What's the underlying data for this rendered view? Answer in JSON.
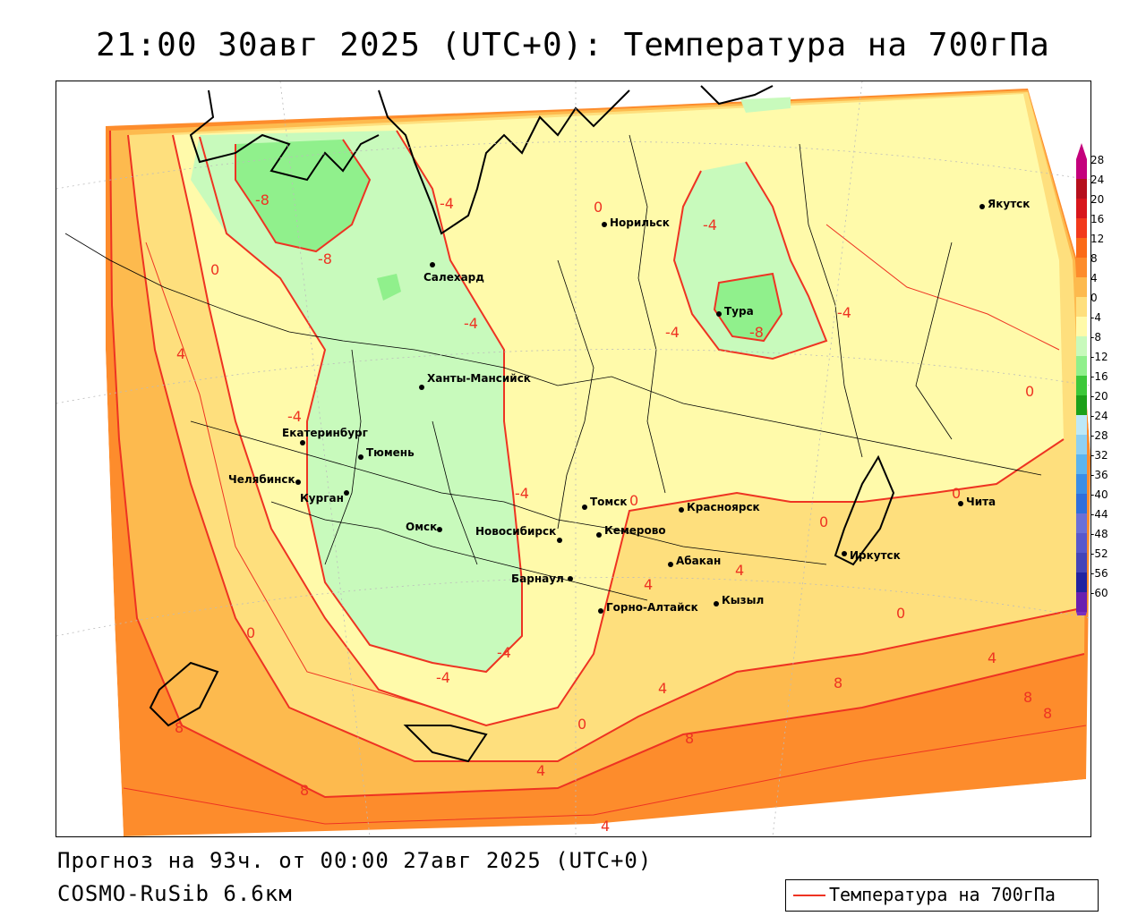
{
  "header": {
    "title": "21:00 30авг 2025 (UTC+0): Температура на 700гПа"
  },
  "footer": {
    "forecast": "Прогноз на 93ч. от 00:00 27авг 2025 (UTC+0)",
    "model": "COSMO-RuSib 6.6км"
  },
  "line_legend": {
    "label": "Температура на 700гПа",
    "color": "#ee3322"
  },
  "color_scale": {
    "levels": [
      {
        "label": "28",
        "color": "#c4007c"
      },
      {
        "label": "24",
        "color": "#b60f1d"
      },
      {
        "label": "20",
        "color": "#d8161c"
      },
      {
        "label": "16",
        "color": "#f2391c"
      },
      {
        "label": "12",
        "color": "#fb6a18"
      },
      {
        "label": "8",
        "color": "#fd8c2c"
      },
      {
        "label": "4",
        "color": "#fdba4e"
      },
      {
        "label": "0",
        "color": "#fedf7d"
      },
      {
        "label": "-4",
        "color": "#fffaaa"
      },
      {
        "label": "-8",
        "color": "#c8fabc"
      },
      {
        "label": "-12",
        "color": "#90f08c"
      },
      {
        "label": "-16",
        "color": "#3cc83a"
      },
      {
        "label": "-20",
        "color": "#1ca01a"
      },
      {
        "label": "-24",
        "color": "#bde8f8"
      },
      {
        "label": "-28",
        "color": "#8ed0f4"
      },
      {
        "label": "-32",
        "color": "#5cb4ee"
      },
      {
        "label": "-36",
        "color": "#3a8ee6"
      },
      {
        "label": "-40",
        "color": "#2f6fdc"
      },
      {
        "label": "-44",
        "color": "#6a70d8"
      },
      {
        "label": "-48",
        "color": "#5858cc"
      },
      {
        "label": "-52",
        "color": "#4444b8"
      },
      {
        "label": "-56",
        "color": "#2222a0"
      },
      {
        "label": "-60",
        "color": "#6a1fb0"
      }
    ],
    "top_arrow_color": "#c4007c",
    "bottom_arrow_color": "#7a2ec0"
  },
  "cities": [
    {
      "name": "Якутск"
    },
    {
      "name": "Норильск"
    },
    {
      "name": "Салехард"
    },
    {
      "name": "Тура"
    },
    {
      "name": "Ханты-Мансийск"
    },
    {
      "name": "Екатеринбург"
    },
    {
      "name": "Тюмень"
    },
    {
      "name": "Челябинск"
    },
    {
      "name": "Курган"
    },
    {
      "name": "Омск"
    },
    {
      "name": "Новосибирск"
    },
    {
      "name": "Томск"
    },
    {
      "name": "Кемерово"
    },
    {
      "name": "Красноярск"
    },
    {
      "name": "Абакан"
    },
    {
      "name": "Барнаул"
    },
    {
      "name": "Горно-Алтайск"
    },
    {
      "name": "Кызыл"
    },
    {
      "name": "Иркутск"
    },
    {
      "name": "Чита"
    }
  ],
  "isotherm_labels": [
    "-8",
    "-8",
    "-4",
    "-4",
    "-4",
    "-4",
    "-4",
    "-8",
    "-4",
    "-4",
    "-4",
    "0",
    "0",
    "0",
    "0",
    "0",
    "0",
    "0",
    "0",
    "4",
    "4",
    "4",
    "4",
    "4",
    "4",
    "4",
    "8",
    "8",
    "8",
    "8",
    "8",
    "8",
    "0",
    "-4"
  ]
}
